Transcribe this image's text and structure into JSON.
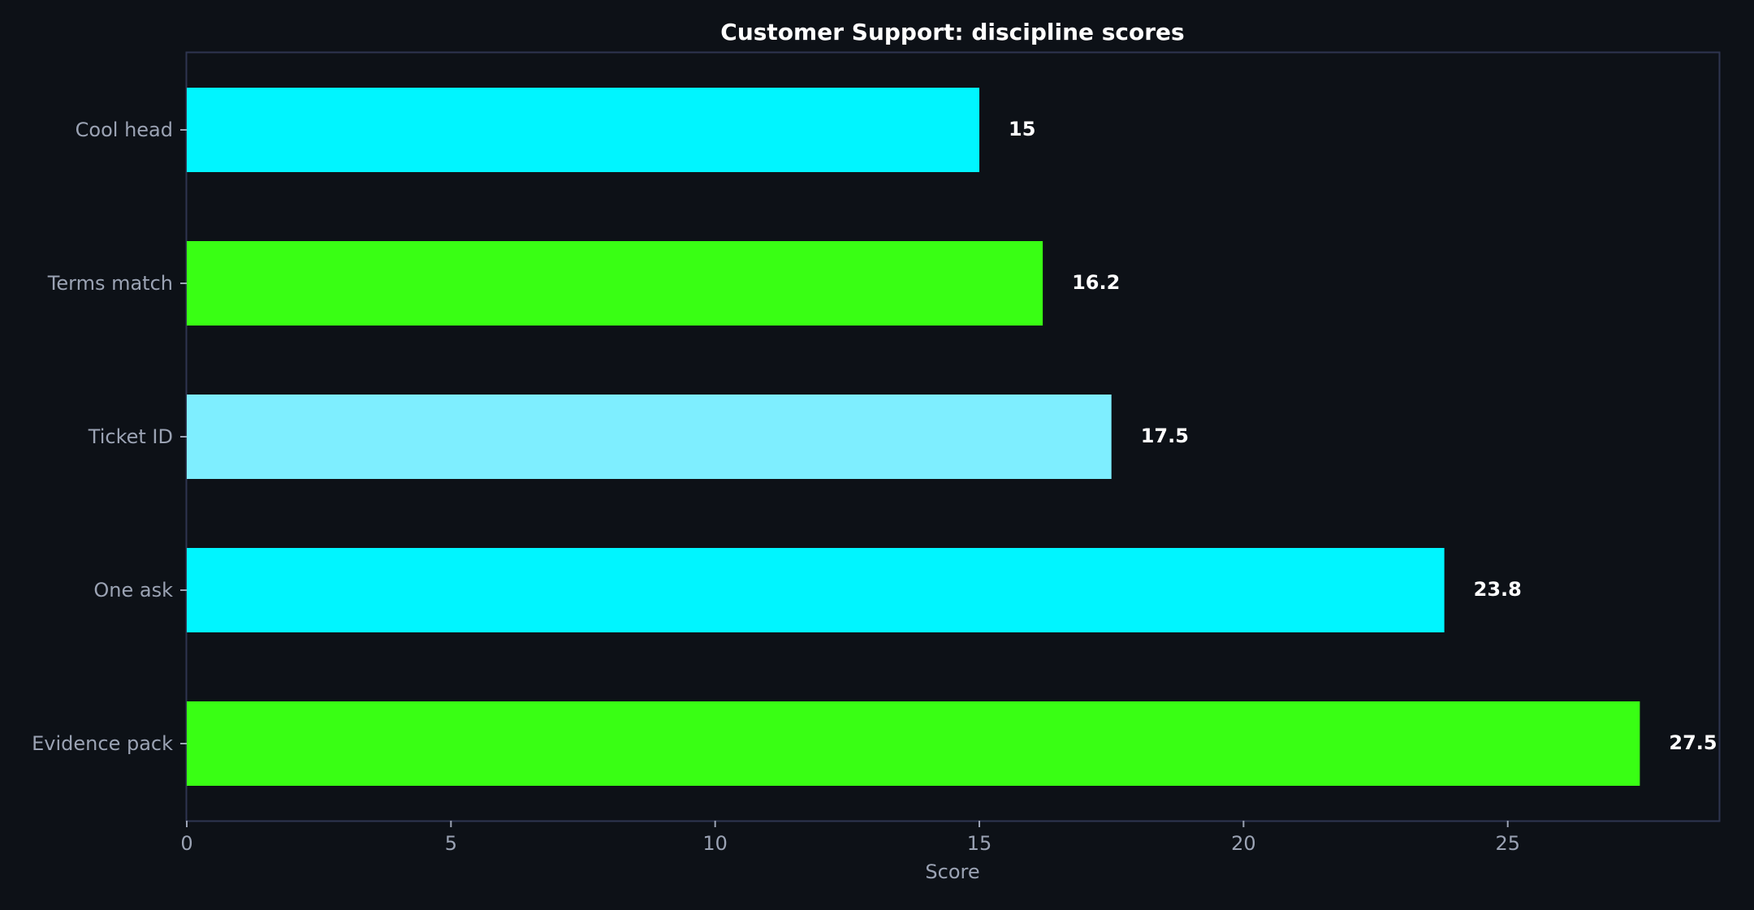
{
  "chart_data": {
    "type": "bar",
    "orientation": "horizontal",
    "title": "Customer Support: discipline scores",
    "xlabel": "Score",
    "ylabel": "",
    "xlim": [
      0,
      29
    ],
    "xticks": [
      0,
      5,
      10,
      15,
      20,
      25
    ],
    "categories": [
      "Cool head",
      "Terms match",
      "Ticket ID",
      "One ask",
      "Evidence pack"
    ],
    "values": [
      15,
      16.2,
      17.5,
      23.8,
      27.5
    ],
    "value_labels": [
      "15",
      "16.2",
      "17.5",
      "23.8",
      "27.5"
    ],
    "bar_colors": [
      "#00f5ff",
      "#39ff14",
      "#7eeeff",
      "#00f5ff",
      "#39ff14"
    ],
    "grid": false,
    "legend": "none"
  },
  "colors": {
    "background": "#0d1117",
    "frame": "#2e3550",
    "axis_text": "#9ba3b4",
    "title_text": "#ffffff"
  }
}
